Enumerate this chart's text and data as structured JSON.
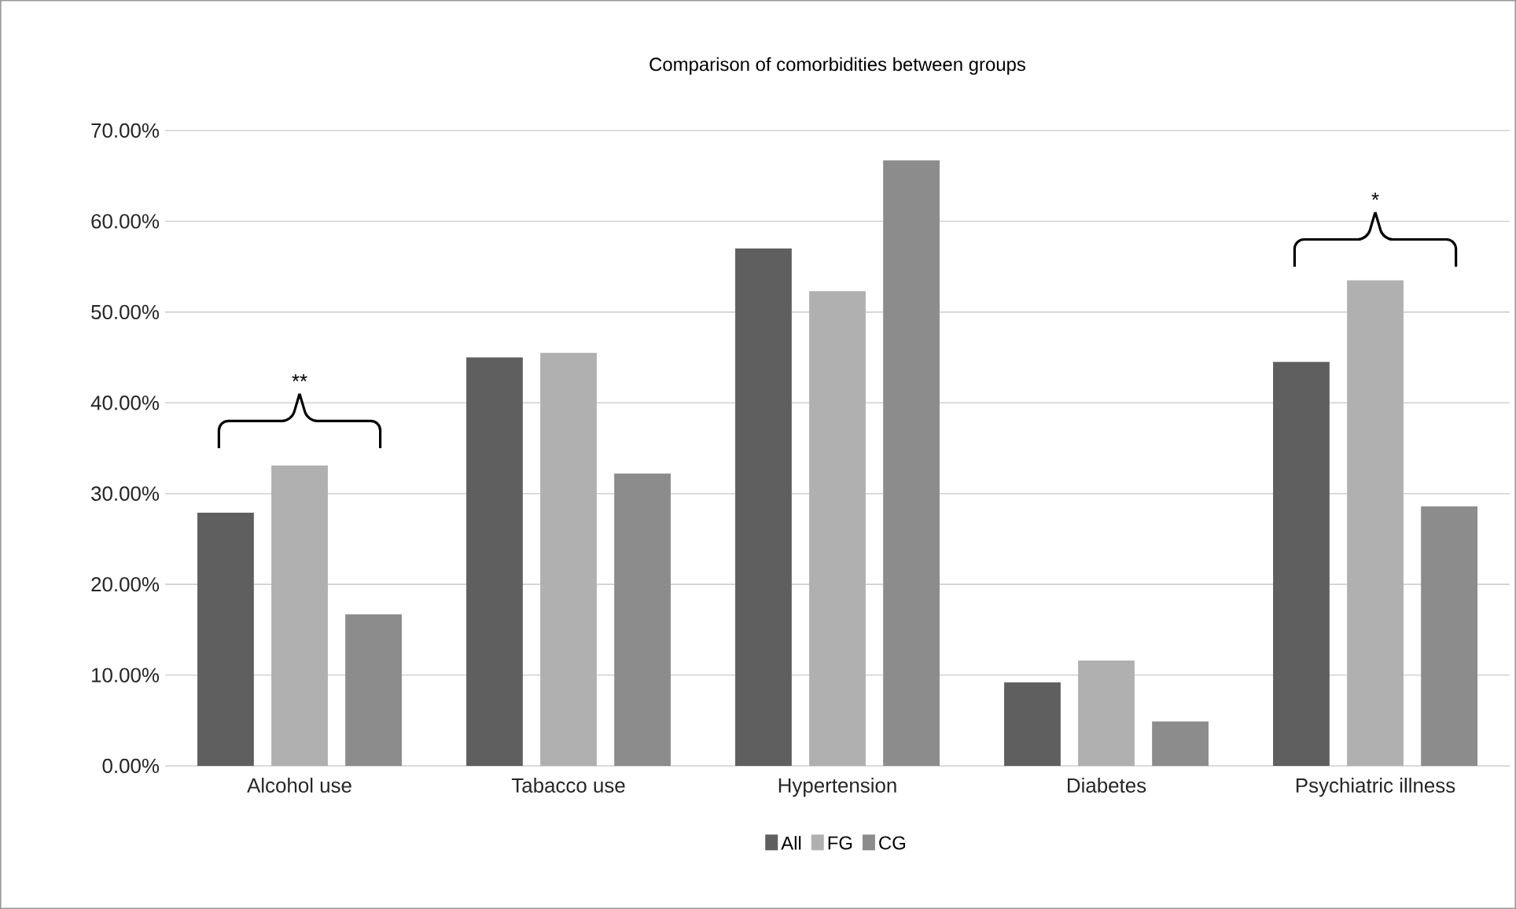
{
  "chart_data": {
    "type": "bar",
    "title": "Comparison of comorbidities between groups",
    "categories": [
      "Alcohol use",
      "Tabacco use",
      "Hypertension",
      "Diabetes",
      "Psychiatric illness"
    ],
    "series": [
      {
        "name": "All",
        "color": "#5f5f5f",
        "values": [
          27.9,
          45.0,
          57.0,
          9.2,
          44.5
        ]
      },
      {
        "name": "FG",
        "color": "#b0b0b0",
        "values": [
          33.1,
          45.5,
          52.3,
          11.6,
          53.5
        ]
      },
      {
        "name": "CG",
        "color": "#8c8c8c",
        "values": [
          16.7,
          32.2,
          66.7,
          4.9,
          28.6
        ]
      }
    ],
    "ylim": [
      0,
      70
    ],
    "yticks": [
      {
        "value": 0,
        "label": "0.00%"
      },
      {
        "value": 10,
        "label": "10.00%"
      },
      {
        "value": 20,
        "label": "20.00%"
      },
      {
        "value": 30,
        "label": "30.00%"
      },
      {
        "value": 40,
        "label": "40.00%"
      },
      {
        "value": 50,
        "label": "50.00%"
      },
      {
        "value": 60,
        "label": "60.00%"
      },
      {
        "value": 70,
        "label": "70.00%"
      }
    ],
    "grid": "y",
    "legend": "bottom",
    "annotations": [
      "**",
      "*"
    ]
  }
}
